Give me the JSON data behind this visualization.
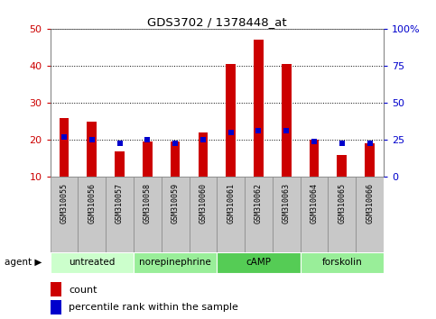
{
  "title": "GDS3702 / 1378448_at",
  "samples": [
    "GSM310055",
    "GSM310056",
    "GSM310057",
    "GSM310058",
    "GSM310059",
    "GSM310060",
    "GSM310061",
    "GSM310062",
    "GSM310063",
    "GSM310064",
    "GSM310065",
    "GSM310066"
  ],
  "count_values": [
    26,
    25,
    17,
    19.5,
    19.5,
    22,
    40.5,
    47,
    40.5,
    20,
    16,
    19
  ],
  "percentile_values": [
    27,
    25,
    23,
    25,
    23,
    25,
    30,
    31,
    31,
    24,
    23,
    23
  ],
  "groups": [
    {
      "label": "untreated",
      "start": 0,
      "end": 3,
      "color": "#ccffcc"
    },
    {
      "label": "norepinephrine",
      "start": 3,
      "end": 6,
      "color": "#99ee99"
    },
    {
      "label": "cAMP",
      "start": 6,
      "end": 9,
      "color": "#55cc55"
    },
    {
      "label": "forskolin",
      "start": 9,
      "end": 12,
      "color": "#99ee99"
    }
  ],
  "ylim_left": [
    10,
    50
  ],
  "ylim_right": [
    0,
    100
  ],
  "yticks_left": [
    10,
    20,
    30,
    40,
    50
  ],
  "yticks_right": [
    0,
    25,
    50,
    75,
    100
  ],
  "ytick_labels_right": [
    "0",
    "25",
    "50",
    "75",
    "100%"
  ],
  "bar_color": "#cc0000",
  "dot_color": "#0000cc",
  "bar_width": 0.35,
  "background_color": "#ffffff",
  "plot_bg_color": "#ffffff",
  "left_tick_color": "#cc0000",
  "right_tick_color": "#0000cc",
  "legend_count_label": "count",
  "legend_pct_label": "percentile rank within the sample",
  "sample_box_color": "#c8c8c8",
  "sample_box_border": "#888888"
}
